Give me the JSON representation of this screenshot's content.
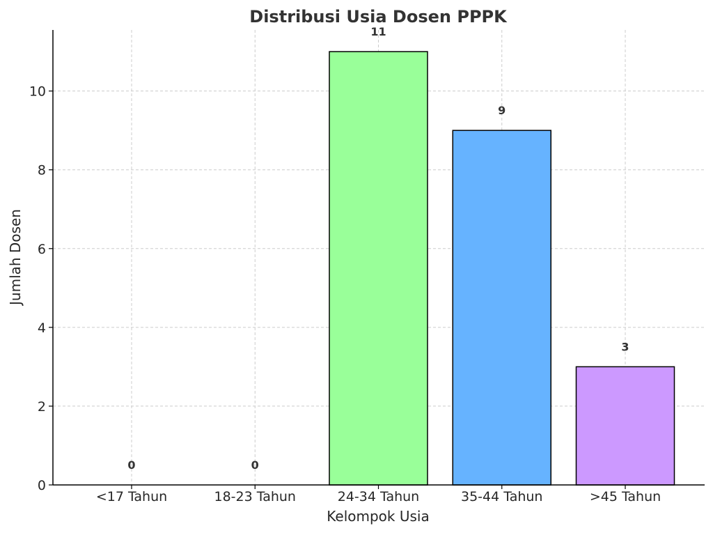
{
  "chart_data": {
    "type": "bar",
    "title": "Distribusi Usia Dosen PPPK",
    "xlabel": "Kelompok Usia",
    "ylabel": "Jumlah Dosen",
    "categories": [
      "<17 Tahun",
      "18-23 Tahun",
      "24-34 Tahun",
      "35-44 Tahun",
      ">45 Tahun"
    ],
    "values": [
      0,
      0,
      11,
      9,
      3
    ],
    "data_labels": [
      "0",
      "0",
      "11",
      "9",
      "3"
    ],
    "colors": [
      "#ff9999",
      "#66b3ff",
      "#99ff99",
      "#66b3ff",
      "#cc99ff"
    ],
    "ylim": [
      0,
      11.55
    ],
    "yticks": [
      0,
      2,
      4,
      6,
      8,
      10
    ],
    "ytick_labels": [
      "0",
      "2",
      "4",
      "6",
      "8",
      "10"
    ],
    "grid": true,
    "legend": "none"
  }
}
